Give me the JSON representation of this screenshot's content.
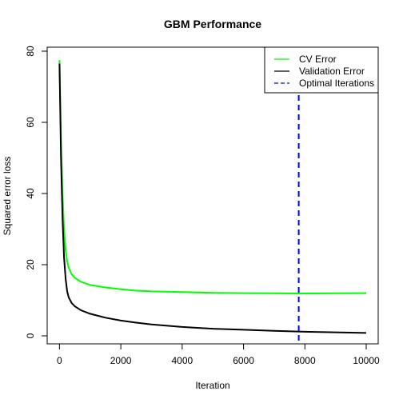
{
  "chart_data": {
    "type": "line",
    "title": "GBM Performance",
    "xlabel": "Iteration",
    "ylabel": "Squared error loss",
    "xlim": [
      -10,
      10000
    ],
    "ylim": [
      0,
      80
    ],
    "x_ticks": [
      0,
      2000,
      4000,
      6000,
      8000,
      10000
    ],
    "y_ticks": [
      0,
      20,
      40,
      60,
      80
    ],
    "grid": false,
    "legend_position": "top-right",
    "series": [
      {
        "name": "CV Error",
        "color": "#00ff00",
        "style": "solid",
        "points": [
          [
            0,
            77.5
          ],
          [
            50,
            55
          ],
          [
            100,
            40
          ],
          [
            150,
            30
          ],
          [
            200,
            24
          ],
          [
            250,
            21
          ],
          [
            300,
            19.2
          ],
          [
            400,
            17.3
          ],
          [
            500,
            16.3
          ],
          [
            700,
            15.2
          ],
          [
            1000,
            14.3
          ],
          [
            1500,
            13.6
          ],
          [
            2000,
            13.1
          ],
          [
            2500,
            12.7
          ],
          [
            3000,
            12.5
          ],
          [
            4000,
            12.3
          ],
          [
            5000,
            12.1
          ],
          [
            6000,
            12.0
          ],
          [
            7000,
            11.95
          ],
          [
            7800,
            11.9
          ],
          [
            9000,
            11.95
          ],
          [
            10000,
            12.0
          ]
        ]
      },
      {
        "name": "Validation Error",
        "color": "#000000",
        "style": "solid",
        "points": [
          [
            0,
            76.5
          ],
          [
            50,
            50
          ],
          [
            100,
            33
          ],
          [
            150,
            22
          ],
          [
            200,
            16
          ],
          [
            250,
            12.5
          ],
          [
            300,
            10.8
          ],
          [
            400,
            9.2
          ],
          [
            500,
            8.3
          ],
          [
            700,
            7.2
          ],
          [
            1000,
            6.2
          ],
          [
            1500,
            5.1
          ],
          [
            2000,
            4.3
          ],
          [
            2500,
            3.7
          ],
          [
            3000,
            3.2
          ],
          [
            4000,
            2.5
          ],
          [
            5000,
            2.0
          ],
          [
            6000,
            1.7
          ],
          [
            7000,
            1.4
          ],
          [
            8000,
            1.15
          ],
          [
            9000,
            1.0
          ],
          [
            10000,
            0.8
          ]
        ]
      },
      {
        "name": "Optimal Iterations",
        "color": "#0000ff",
        "style": "dashed",
        "vertical_at_x": 7800
      }
    ]
  }
}
